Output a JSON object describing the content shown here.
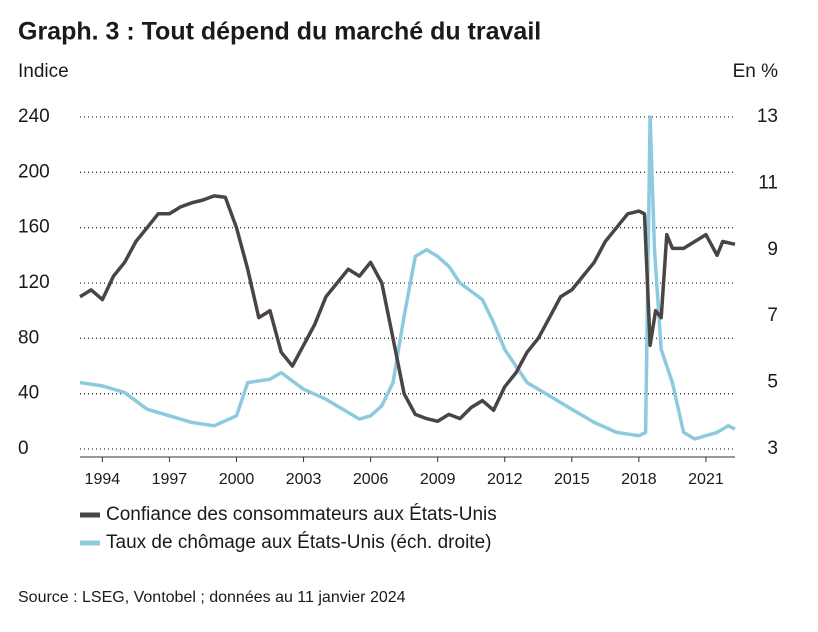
{
  "chart_data": {
    "type": "line",
    "title": "Graph. 3 : Tout dépend du marché du travail",
    "y_label": "Indice",
    "y2_label": "En %",
    "source": "Source : LSEG, Vontobel ; données au 11 janvier 2024",
    "xlim": [
      1993.0,
      2022.3
    ],
    "xticks": [
      1994,
      1997,
      2000,
      2003,
      2006,
      2009,
      2012,
      2015,
      2018,
      2021
    ],
    "ylim": [
      0,
      240
    ],
    "yticks": [
      0,
      40,
      80,
      120,
      160,
      200,
      240
    ],
    "y2lim": [
      3,
      13
    ],
    "y2ticks": [
      3,
      5,
      7,
      9,
      11,
      13
    ],
    "grid": true,
    "series": [
      {
        "name": "Confiance des consommateurs aux États-Unis",
        "color": "#4a4542",
        "x": [
          1993.0,
          1993.5,
          1994.0,
          1994.5,
          1995.0,
          1995.5,
          1996.0,
          1996.5,
          1997.0,
          1997.5,
          1998.0,
          1998.5,
          1999.0,
          1999.5,
          2000.0,
          2000.5,
          2001.0,
          2001.5,
          2002.0,
          2002.5,
          2003.0,
          2003.5,
          2004.0,
          2004.5,
          2005.0,
          2005.5,
          2006.0,
          2006.5,
          2007.0,
          2007.5,
          2008.0,
          2008.5,
          2009.0,
          2009.5,
          2010.0,
          2010.5,
          2011.0,
          2011.5,
          2012.0,
          2012.5,
          2013.0,
          2013.5,
          2014.0,
          2014.5,
          2015.0,
          2015.5,
          2016.0,
          2016.5,
          2017.0,
          2017.5,
          2018.0,
          2018.25,
          2018.5,
          2018.75,
          2019.0,
          2019.25,
          2019.5,
          2020.0,
          2020.5,
          2021.0,
          2021.5,
          2021.75,
          2022.3
        ],
        "values": [
          110,
          115,
          108,
          125,
          135,
          150,
          160,
          170,
          170,
          175,
          178,
          180,
          183,
          182,
          160,
          130,
          95,
          100,
          70,
          60,
          75,
          90,
          110,
          120,
          130,
          125,
          135,
          120,
          80,
          40,
          25,
          22,
          20,
          25,
          22,
          30,
          35,
          28,
          45,
          55,
          70,
          80,
          95,
          110,
          115,
          125,
          135,
          150,
          160,
          170,
          172,
          170,
          75,
          100,
          95,
          155,
          145,
          145,
          150,
          155,
          140,
          150,
          148
        ]
      },
      {
        "name": "Taux de chômage aux États-Unis (éch. droite)",
        "color": "#8ccbdf",
        "axis": "y2",
        "x": [
          1993.0,
          1994.0,
          1995.0,
          1996.0,
          1997.0,
          1998.0,
          1999.0,
          2000.0,
          2000.5,
          2001.5,
          2002.0,
          2003.0,
          2004.0,
          2005.0,
          2005.5,
          2006.0,
          2006.5,
          2007.0,
          2007.5,
          2008.0,
          2008.5,
          2009.0,
          2009.5,
          2010.0,
          2011.0,
          2011.5,
          2012.0,
          2013.0,
          2014.0,
          2015.0,
          2016.0,
          2017.0,
          2018.0,
          2018.3,
          2018.5,
          2018.7,
          2019.0,
          2019.5,
          2020.0,
          2020.5,
          2021.0,
          2021.5,
          2022.0,
          2022.3
        ],
        "values": [
          5.0,
          4.9,
          4.7,
          4.2,
          4.0,
          3.8,
          3.7,
          4.0,
          5.0,
          5.1,
          5.3,
          4.8,
          4.5,
          4.1,
          3.9,
          4.0,
          4.3,
          5.0,
          7.0,
          8.8,
          9.0,
          8.8,
          8.5,
          8.0,
          7.5,
          6.8,
          6.0,
          5.0,
          4.6,
          4.2,
          3.8,
          3.5,
          3.4,
          3.5,
          13,
          9,
          6,
          5,
          3.5,
          3.3,
          3.4,
          3.5,
          3.7,
          3.6
        ]
      }
    ]
  }
}
